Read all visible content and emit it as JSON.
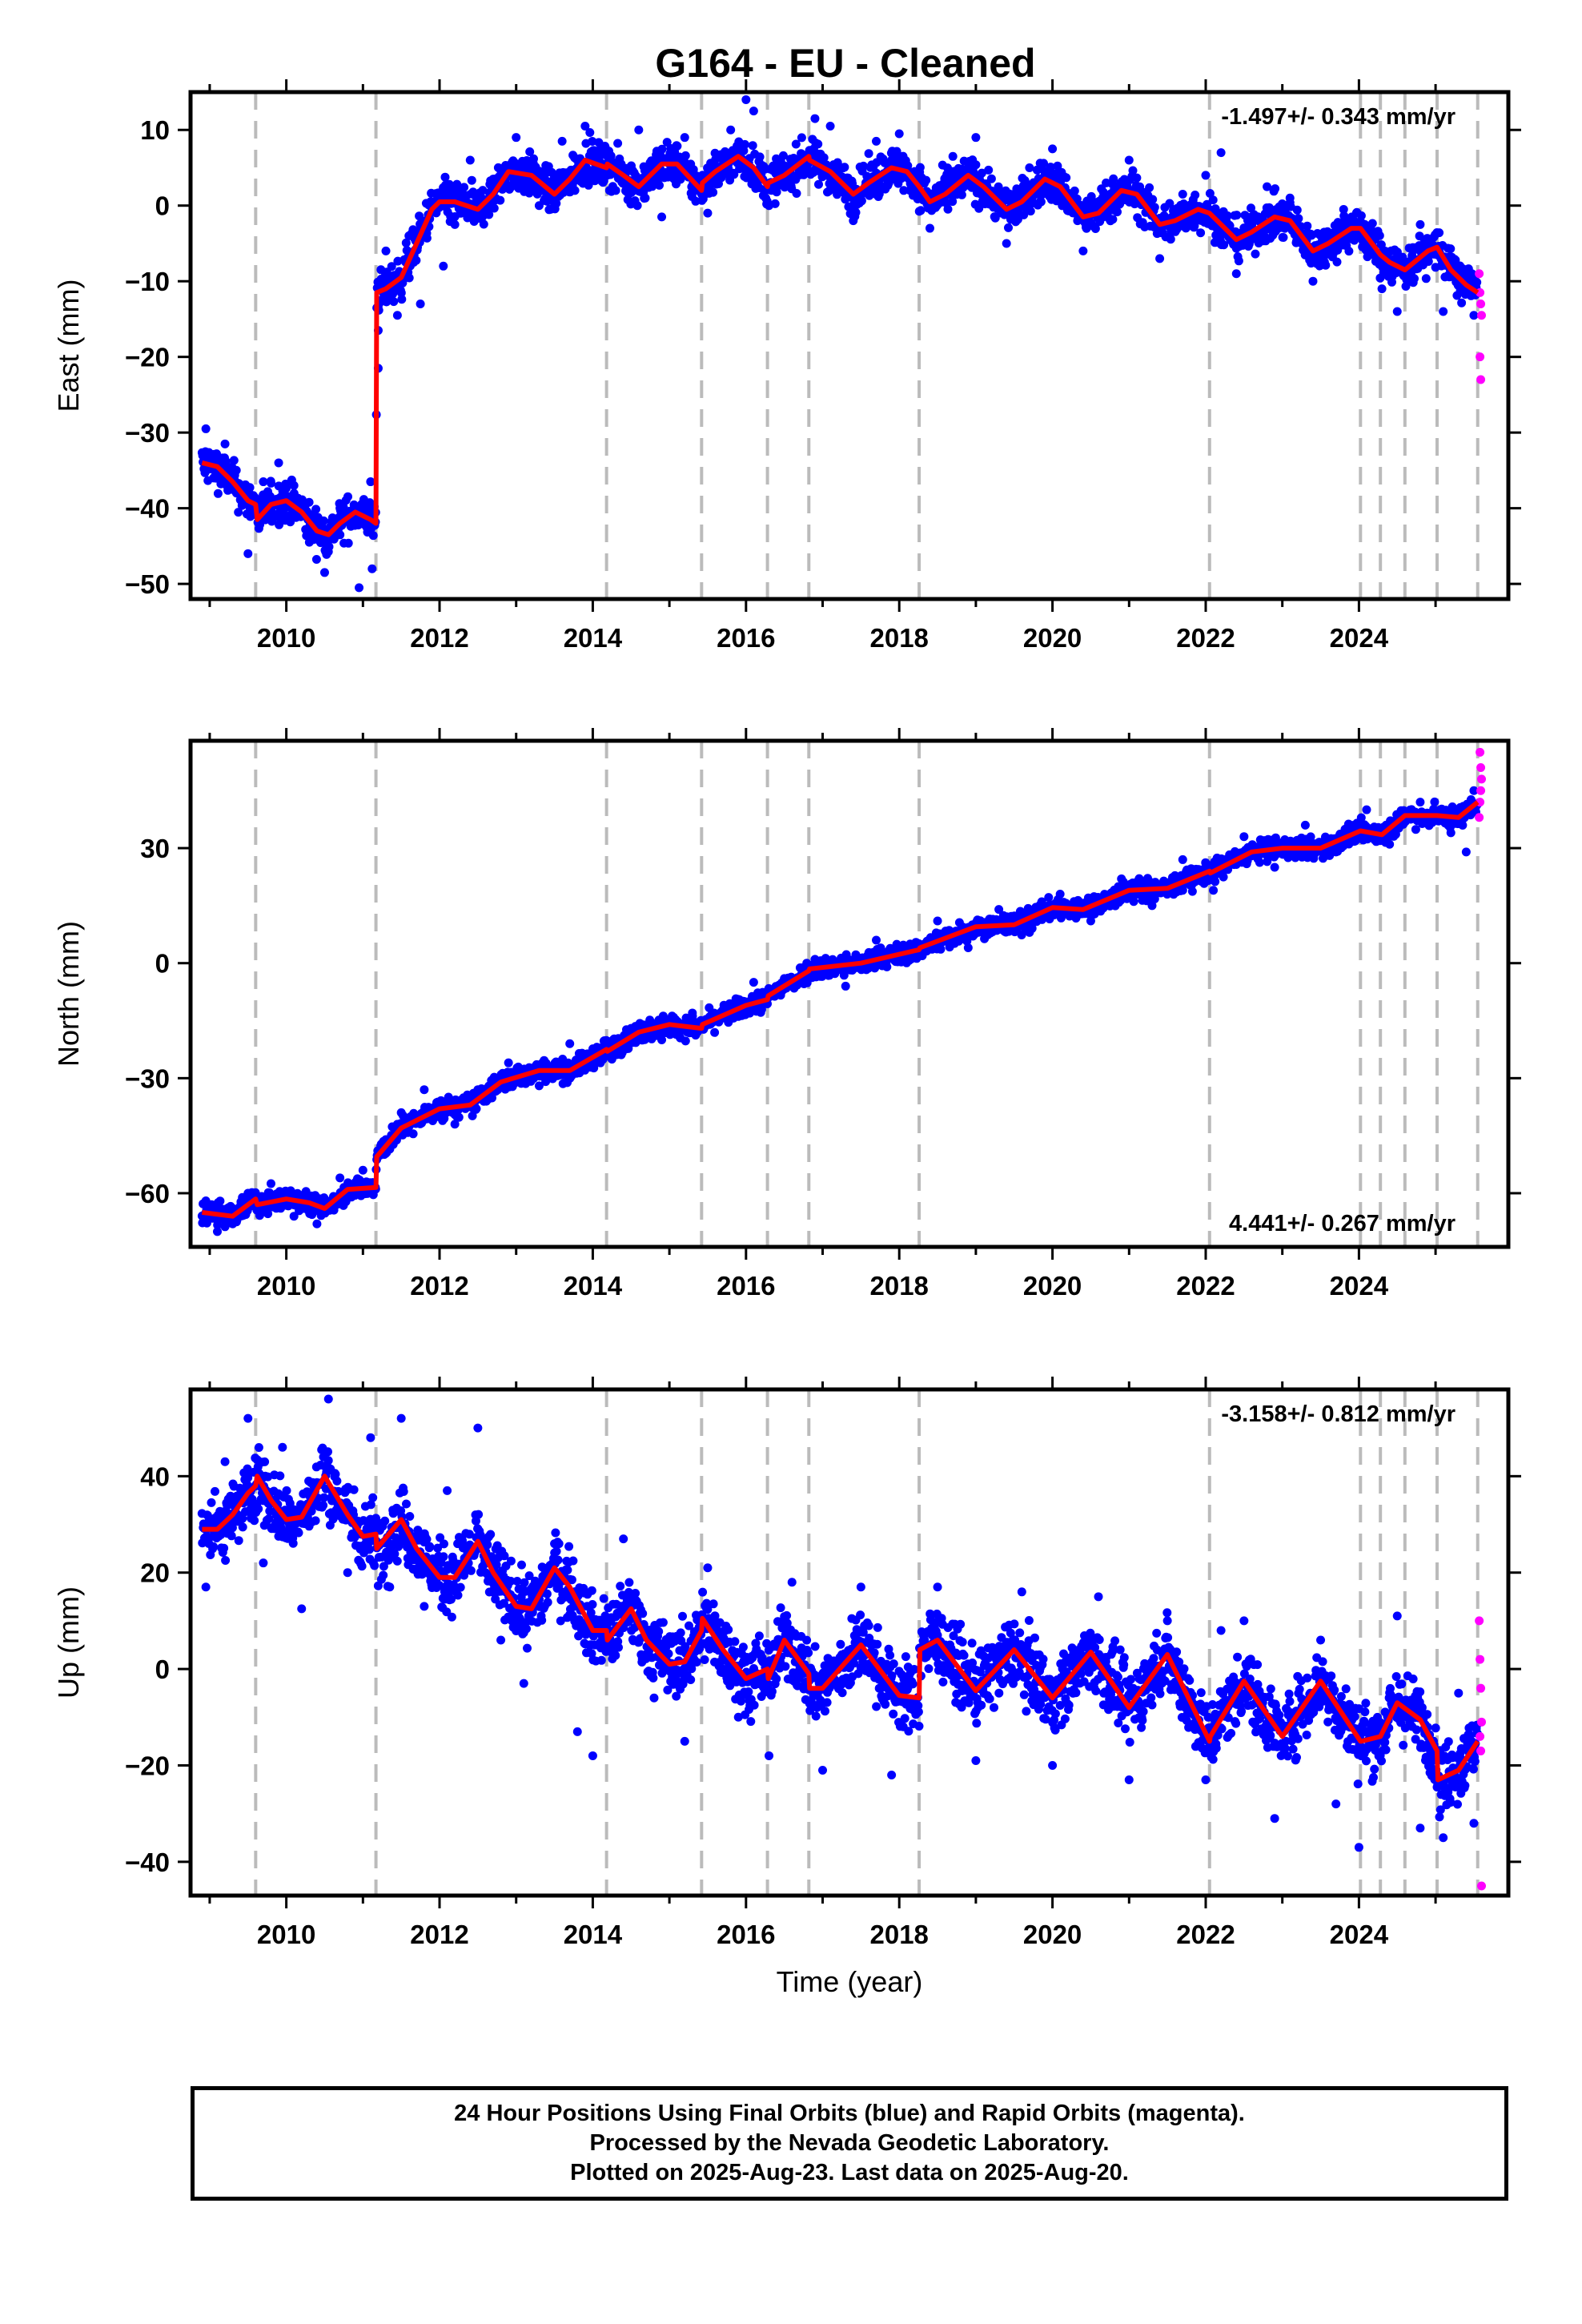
{
  "title": "G164  - EU - Cleaned",
  "footer": {
    "lines": [
      "24 Hour Positions Using Final Orbits (blue) and Rapid Orbits (magenta).",
      "Processed by the Nevada Geodetic Laboratory.",
      "Plotted on 2025-Aug-23. Last data on 2025-Aug-20."
    ]
  },
  "colors": {
    "final": "#0000ff",
    "rapid": "#ff00ff",
    "model": "#ff0000",
    "event_line": "#bbbbbb",
    "frame": "#000000"
  },
  "chart_data": [
    {
      "type": "scatter",
      "component": "east",
      "ylabel": "East (mm)",
      "xlabel": "",
      "xlim": [
        2008.75,
        2025.95
      ],
      "ylim": [
        -52,
        15
      ],
      "xticks": [
        2010,
        2012,
        2014,
        2016,
        2018,
        2020,
        2022,
        2024
      ],
      "yticks": [
        10,
        0,
        -10,
        -20,
        -30,
        -40,
        -50
      ],
      "rate_text": "-1.497+/- 0.343 mm/yr",
      "rate_position": "top-right",
      "event_lines": [
        2009.6,
        2011.17,
        2014.18,
        2015.42,
        2016.28,
        2016.82,
        2018.26,
        2022.05,
        2024.02,
        2024.28,
        2024.6,
        2025.02,
        2025.55
      ],
      "model_curve": {
        "x": [
          2008.9,
          2009.1,
          2009.3,
          2009.5,
          2009.6,
          2009.62,
          2009.8,
          2010.0,
          2010.2,
          2010.4,
          2010.55,
          2010.7,
          2010.9,
          2011.1,
          2011.17,
          2011.18,
          2011.3,
          2011.5,
          2011.7,
          2011.9,
          2012.0,
          2012.2,
          2012.5,
          2012.7,
          2012.9,
          2013.2,
          2013.5,
          2013.7,
          2013.9,
          2014.18,
          2014.19,
          2014.4,
          2014.6,
          2014.9,
          2015.1,
          2015.42,
          2015.43,
          2015.6,
          2015.9,
          2016.1,
          2016.28,
          2016.29,
          2016.5,
          2016.82,
          2016.83,
          2017.1,
          2017.4,
          2017.6,
          2017.9,
          2018.1,
          2018.26,
          2018.4,
          2018.6,
          2018.9,
          2019.1,
          2019.4,
          2019.6,
          2019.9,
          2020.1,
          2020.4,
          2020.6,
          2020.9,
          2021.1,
          2021.4,
          2021.6,
          2021.9,
          2022.05,
          2022.4,
          2022.6,
          2022.9,
          2023.1,
          2023.4,
          2023.6,
          2023.9,
          2024.02,
          2024.28,
          2024.4,
          2024.6,
          2024.9,
          2025.02,
          2025.2,
          2025.4,
          2025.55
        ],
        "y": [
          -34,
          -34.5,
          -36.5,
          -39,
          -39.5,
          -41.5,
          -39.5,
          -39,
          -40.5,
          -43,
          -43.5,
          -42,
          -40.5,
          -41.5,
          -42,
          -11.5,
          -11,
          -9.5,
          -5,
          -0.5,
          0.5,
          0.5,
          -0.5,
          1.5,
          4.5,
          4,
          1.5,
          3.5,
          6,
          5,
          5.5,
          4,
          2.5,
          5.5,
          5.5,
          2,
          3,
          4.5,
          6.5,
          5,
          2.5,
          3,
          4,
          6.5,
          6,
          4.5,
          1.5,
          3,
          5,
          4.5,
          2.5,
          0.5,
          1.5,
          4,
          2.5,
          -0.5,
          0.5,
          3.5,
          2.5,
          -1.5,
          -1,
          2,
          1.5,
          -2.5,
          -2,
          -0.5,
          -1,
          -4.5,
          -3.5,
          -1.5,
          -2,
          -6,
          -5,
          -3,
          -3,
          -6.5,
          -7.5,
          -8.5,
          -6,
          -5.5,
          -8.5,
          -10.5,
          -11.5
        ]
      },
      "final_points": [
        [
          2008.95,
          -29.5
        ],
        [
          2009.05,
          -36
        ],
        [
          2009.2,
          -31.5
        ],
        [
          2009.35,
          -38
        ],
        [
          2009.5,
          -46
        ],
        [
          2009.7,
          -36.5
        ],
        [
          2009.9,
          -34
        ],
        [
          2010.1,
          -37
        ],
        [
          2010.3,
          -44.5
        ],
        [
          2010.5,
          -48.5
        ],
        [
          2010.7,
          -40
        ],
        [
          2010.95,
          -50.5
        ],
        [
          2011.1,
          -36.5
        ],
        [
          2011.12,
          -48
        ],
        [
          2011.2,
          -16.5
        ],
        [
          2011.2,
          -21.5
        ],
        [
          2011.3,
          -6
        ],
        [
          2011.45,
          -14.5
        ],
        [
          2011.6,
          -4
        ],
        [
          2011.75,
          -13
        ],
        [
          2012.05,
          -8
        ],
        [
          2012.2,
          -2.5
        ],
        [
          2012.4,
          6
        ],
        [
          2012.7,
          3.5
        ],
        [
          2013.0,
          9
        ],
        [
          2013.3,
          0
        ],
        [
          2013.6,
          8.5
        ],
        [
          2013.9,
          10.5
        ],
        [
          2014.3,
          2
        ],
        [
          2014.6,
          10
        ],
        [
          2014.9,
          -1.5
        ],
        [
          2015.2,
          9
        ],
        [
          2015.5,
          -1
        ],
        [
          2015.8,
          10
        ],
        [
          2016.0,
          14
        ],
        [
          2016.1,
          12.5
        ],
        [
          2016.3,
          0
        ],
        [
          2016.6,
          6
        ],
        [
          2016.9,
          11.5
        ],
        [
          2017.1,
          10.5
        ],
        [
          2017.4,
          -2
        ],
        [
          2017.7,
          8.5
        ],
        [
          2018.0,
          9.5
        ],
        [
          2018.4,
          -3
        ],
        [
          2018.7,
          6.5
        ],
        [
          2019.0,
          9
        ],
        [
          2019.4,
          -5
        ],
        [
          2019.7,
          5
        ],
        [
          2020.0,
          7.5
        ],
        [
          2020.4,
          -6
        ],
        [
          2020.7,
          3
        ],
        [
          2021.0,
          6
        ],
        [
          2021.4,
          -7
        ],
        [
          2021.7,
          1.5
        ],
        [
          2022.0,
          4
        ],
        [
          2022.2,
          7
        ],
        [
          2022.4,
          -9
        ],
        [
          2022.8,
          2.5
        ],
        [
          2023.1,
          1
        ],
        [
          2023.4,
          -10
        ],
        [
          2023.8,
          -0.5
        ],
        [
          2024.1,
          -3
        ],
        [
          2024.3,
          -11
        ],
        [
          2024.5,
          -14
        ],
        [
          2024.8,
          -2.5
        ],
        [
          2025.1,
          -14
        ],
        [
          2025.3,
          -9
        ],
        [
          2025.5,
          -14.5
        ]
      ],
      "rapid_points": [
        [
          2025.57,
          -9
        ],
        [
          2025.58,
          -11.5
        ],
        [
          2025.59,
          -13
        ],
        [
          2025.6,
          -14.5
        ],
        [
          2025.58,
          -20
        ],
        [
          2025.59,
          -23
        ]
      ]
    },
    {
      "type": "scatter",
      "component": "north",
      "ylabel": "North (mm)",
      "xlabel": "",
      "xlim": [
        2008.75,
        2025.95
      ],
      "ylim": [
        -74,
        58
      ],
      "xticks": [
        2010,
        2012,
        2014,
        2016,
        2018,
        2020,
        2022,
        2024
      ],
      "yticks": [
        30,
        0,
        -30,
        -60
      ],
      "rate_text": "4.441+/- 0.267 mm/yr",
      "rate_position": "bottom-right",
      "event_lines": [
        2009.6,
        2011.17,
        2014.18,
        2015.42,
        2016.28,
        2016.82,
        2018.26,
        2022.05,
        2024.02,
        2024.28,
        2024.6,
        2025.02,
        2025.55
      ],
      "model_curve": {
        "x": [
          2008.9,
          2009.3,
          2009.6,
          2009.62,
          2010.0,
          2010.3,
          2010.5,
          2010.8,
          2011.17,
          2011.18,
          2011.5,
          2012.0,
          2012.4,
          2012.8,
          2013.3,
          2013.7,
          2014.18,
          2014.19,
          2014.6,
          2015.0,
          2015.42,
          2015.43,
          2016.0,
          2016.28,
          2016.29,
          2016.82,
          2016.83,
          2017.5,
          2018.26,
          2018.27,
          2019.0,
          2019.5,
          2020.0,
          2020.4,
          2021.0,
          2021.5,
          2022.05,
          2022.06,
          2022.6,
          2023.0,
          2023.5,
          2024.02,
          2024.3,
          2024.6,
          2025.02,
          2025.3,
          2025.55
        ],
        "y": [
          -65,
          -66,
          -61.5,
          -63,
          -61.5,
          -62.5,
          -64,
          -59,
          -58.5,
          -50.5,
          -43,
          -38,
          -37,
          -31,
          -28,
          -28,
          -22.5,
          -23,
          -18,
          -16,
          -17,
          -16,
          -11,
          -9.5,
          -8.5,
          -2,
          -1.5,
          0,
          3.5,
          4,
          9.5,
          10,
          14.5,
          14,
          19,
          19.5,
          24,
          23.5,
          29,
          30,
          30,
          34.5,
          33.5,
          38.5,
          38.5,
          38,
          42
        ]
      },
      "final_points": [
        [
          2008.95,
          -62
        ],
        [
          2009.1,
          -70
        ],
        [
          2009.3,
          -68
        ],
        [
          2009.5,
          -60
        ],
        [
          2009.8,
          -57.5
        ],
        [
          2010.1,
          -66
        ],
        [
          2010.4,
          -68
        ],
        [
          2010.7,
          -56
        ],
        [
          2011.0,
          -54
        ],
        [
          2011.3,
          -46
        ],
        [
          2011.5,
          -39
        ],
        [
          2011.8,
          -33
        ],
        [
          2012.2,
          -42
        ],
        [
          2012.5,
          -33
        ],
        [
          2012.9,
          -26
        ],
        [
          2013.3,
          -32
        ],
        [
          2013.7,
          -21
        ],
        [
          2014.1,
          -26
        ],
        [
          2014.5,
          -17
        ],
        [
          2014.9,
          -20
        ],
        [
          2015.3,
          -13
        ],
        [
          2015.7,
          -14
        ],
        [
          2016.1,
          -5
        ],
        [
          2016.5,
          -4
        ],
        [
          2016.9,
          1
        ],
        [
          2017.3,
          -6
        ],
        [
          2017.7,
          6
        ],
        [
          2018.1,
          2
        ],
        [
          2018.5,
          11
        ],
        [
          2018.9,
          4
        ],
        [
          2019.3,
          14
        ],
        [
          2019.7,
          8
        ],
        [
          2020.1,
          18
        ],
        [
          2020.5,
          11
        ],
        [
          2020.9,
          22
        ],
        [
          2021.3,
          15
        ],
        [
          2021.7,
          27
        ],
        [
          2022.1,
          19
        ],
        [
          2022.5,
          33
        ],
        [
          2022.9,
          25
        ],
        [
          2023.3,
          36
        ],
        [
          2023.7,
          29
        ],
        [
          2024.1,
          40
        ],
        [
          2024.4,
          31
        ],
        [
          2024.8,
          42
        ],
        [
          2025.2,
          34
        ],
        [
          2025.4,
          29
        ],
        [
          2025.5,
          45
        ]
      ],
      "rapid_points": [
        [
          2025.57,
          38
        ],
        [
          2025.58,
          42
        ],
        [
          2025.59,
          45
        ],
        [
          2025.6,
          48
        ],
        [
          2025.59,
          51
        ],
        [
          2025.58,
          55
        ]
      ]
    },
    {
      "type": "scatter",
      "component": "up",
      "ylabel": "Up (mm)",
      "xlabel": "Time (year)",
      "xlim": [
        2008.75,
        2025.95
      ],
      "ylim": [
        -47,
        58
      ],
      "xticks": [
        2010,
        2012,
        2014,
        2016,
        2018,
        2020,
        2022,
        2024
      ],
      "yticks": [
        40,
        20,
        0,
        -20,
        -40
      ],
      "rate_text": "-3.158+/- 0.812 mm/yr",
      "rate_position": "top-right",
      "event_lines": [
        2009.6,
        2011.17,
        2014.18,
        2015.42,
        2016.28,
        2016.82,
        2018.26,
        2022.05,
        2024.02,
        2024.28,
        2024.6,
        2025.02,
        2025.55
      ],
      "model_curve": {
        "x": [
          2008.9,
          2009.1,
          2009.3,
          2009.5,
          2009.6,
          2009.62,
          2009.8,
          2010.0,
          2010.2,
          2010.5,
          2010.8,
          2011.0,
          2011.17,
          2011.18,
          2011.5,
          2011.7,
          2012.0,
          2012.2,
          2012.5,
          2012.7,
          2013.0,
          2013.2,
          2013.5,
          2013.7,
          2014.0,
          2014.18,
          2014.19,
          2014.5,
          2014.7,
          2015.0,
          2015.2,
          2015.42,
          2015.43,
          2015.7,
          2016.0,
          2016.28,
          2016.29,
          2016.5,
          2016.82,
          2016.83,
          2017.0,
          2017.5,
          2018.0,
          2018.26,
          2018.27,
          2018.5,
          2019.0,
          2019.5,
          2020.0,
          2020.5,
          2021.0,
          2021.5,
          2022.05,
          2022.06,
          2022.5,
          2023.0,
          2023.5,
          2024.02,
          2024.03,
          2024.28,
          2024.5,
          2024.8,
          2025.02,
          2025.03,
          2025.3,
          2025.55
        ],
        "y": [
          29,
          29,
          32,
          36.5,
          38,
          40,
          35,
          31,
          31.5,
          40,
          32,
          27.5,
          28,
          25,
          31,
          25,
          19,
          19,
          26.5,
          20,
          13,
          12.5,
          21,
          17,
          8,
          8,
          6,
          12.5,
          6,
          1,
          1.5,
          8,
          10.5,
          4,
          -2,
          0,
          -2,
          6,
          -1,
          -4,
          -4,
          5,
          -5.5,
          -6,
          4,
          6,
          -4.5,
          4,
          -6,
          3.5,
          -8,
          3,
          -15,
          -14,
          -2.5,
          -14,
          -2.5,
          -15,
          -15,
          -14,
          -7,
          -10.5,
          -17,
          -23,
          -21,
          -15
        ]
      },
      "final_points": [
        [
          2008.95,
          17
        ],
        [
          2009.2,
          43
        ],
        [
          2009.5,
          52
        ],
        [
          2009.7,
          22
        ],
        [
          2009.95,
          46
        ],
        [
          2010.2,
          12.5
        ],
        [
          2010.55,
          56
        ],
        [
          2010.8,
          20
        ],
        [
          2011.1,
          48
        ],
        [
          2011.35,
          17
        ],
        [
          2011.5,
          52
        ],
        [
          2011.8,
          13
        ],
        [
          2012.1,
          37
        ],
        [
          2012.5,
          50
        ],
        [
          2012.8,
          6
        ],
        [
          2013.1,
          -3
        ],
        [
          2013.5,
          26
        ],
        [
          2013.8,
          -13
        ],
        [
          2014.0,
          -18
        ],
        [
          2014.4,
          27
        ],
        [
          2014.8,
          -6
        ],
        [
          2015.2,
          -15
        ],
        [
          2015.5,
          21
        ],
        [
          2015.9,
          -10
        ],
        [
          2016.3,
          -18
        ],
        [
          2016.6,
          18
        ],
        [
          2017.0,
          -21
        ],
        [
          2017.5,
          17
        ],
        [
          2017.9,
          -22
        ],
        [
          2018.5,
          17
        ],
        [
          2019.0,
          -19
        ],
        [
          2019.6,
          16
        ],
        [
          2020.0,
          -20
        ],
        [
          2020.6,
          15
        ],
        [
          2021.0,
          -23
        ],
        [
          2021.5,
          10
        ],
        [
          2022.0,
          -23
        ],
        [
          2022.2,
          8
        ],
        [
          2022.5,
          10
        ],
        [
          2022.9,
          -31
        ],
        [
          2023.5,
          6
        ],
        [
          2023.7,
          -28
        ],
        [
          2024.0,
          -37
        ],
        [
          2024.2,
          -15
        ],
        [
          2024.5,
          11
        ],
        [
          2024.8,
          -33
        ],
        [
          2025.1,
          -35
        ],
        [
          2025.3,
          -5
        ],
        [
          2025.5,
          -32
        ]
      ],
      "rapid_points": [
        [
          2025.57,
          10
        ],
        [
          2025.58,
          2
        ],
        [
          2025.59,
          -4
        ],
        [
          2025.6,
          -11
        ],
        [
          2025.58,
          -14
        ],
        [
          2025.59,
          -17
        ],
        [
          2025.6,
          -45
        ]
      ]
    }
  ]
}
